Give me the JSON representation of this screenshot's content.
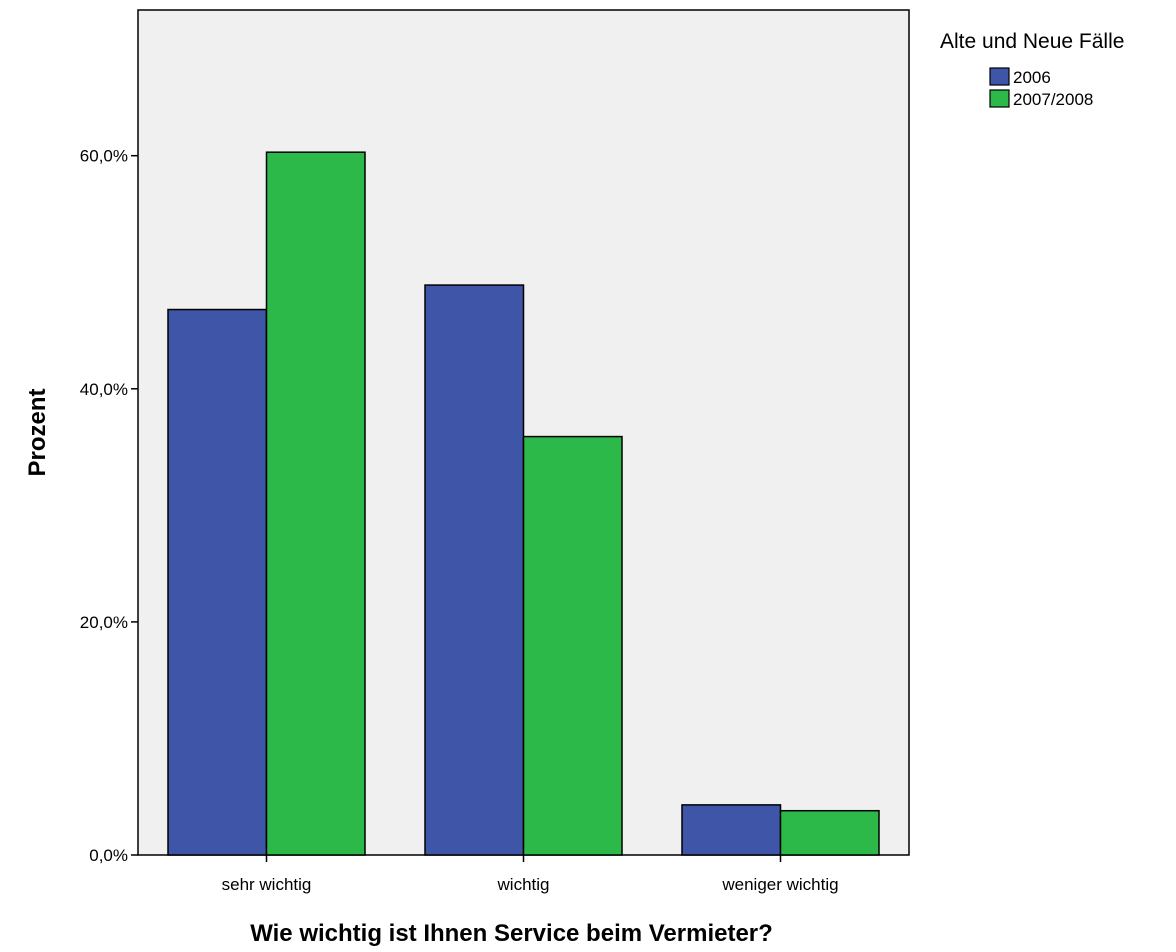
{
  "chart_data": {
    "type": "bar",
    "title": "",
    "xlabel": "Wie wichtig ist Ihnen Service beim Vermieter?",
    "ylabel": "Prozent",
    "categories": [
      "sehr wichtig",
      "wichtig",
      "weniger wichtig"
    ],
    "series": [
      {
        "name": "2006",
        "values": [
          46.8,
          48.9,
          4.3
        ],
        "color": "#3f56a8"
      },
      {
        "name": "2007/2008",
        "values": [
          60.3,
          35.9,
          3.8
        ],
        "color": "#2db84a"
      }
    ],
    "ylim": [
      0,
      72.5
    ],
    "yticks": [
      0,
      20,
      40,
      60
    ],
    "ytick_labels": [
      "0,0%",
      "20,0%",
      "40,0%",
      "60,0%"
    ],
    "grid": false,
    "legend": {
      "title": "Alte und Neue Fälle",
      "position": "top-right"
    },
    "plot_background": "#f0f0f0"
  }
}
